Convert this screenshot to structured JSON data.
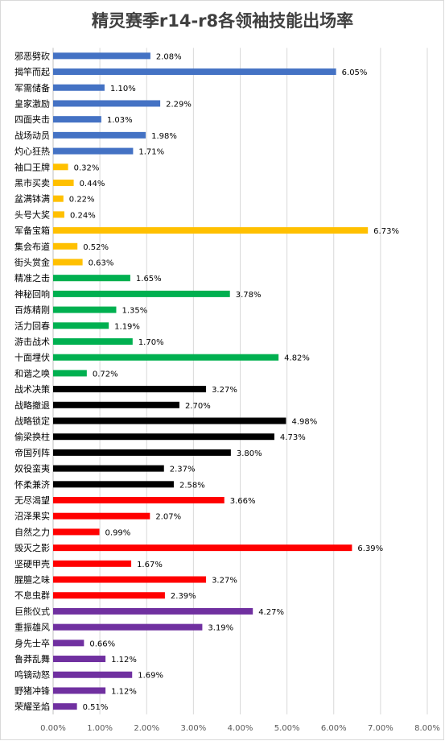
{
  "chart_data": {
    "type": "bar",
    "orientation": "horizontal",
    "title": "精灵赛季r14-r8各领袖技能出场率",
    "xlim": [
      0,
      8
    ],
    "x_tick_labels": [
      "0.00%",
      "1.00%",
      "2.00%",
      "3.00%",
      "4.00%",
      "5.00%",
      "6.00%",
      "7.00%",
      "8.00%"
    ],
    "grid": "vertical",
    "categories": [
      "邪恶劈砍",
      "揭竿而起",
      "军需储备",
      "皇家激励",
      "四面夹击",
      "战场动员",
      "灼心狂热",
      "袖口王牌",
      "黑市买卖",
      "盆满钵满",
      "头号大奖",
      "军备宝箱",
      "集会布道",
      "街头赏金",
      "精准之击",
      "神秘回响",
      "百炼精刚",
      "活力回春",
      "游击战术",
      "十面埋伏",
      "和谐之唤",
      "战术决策",
      "战略撤退",
      "战略锁定",
      "偷梁换柱",
      "帝国列阵",
      "奴役蛮夷",
      "怀柔兼济",
      "无尽渴望",
      "沼泽果实",
      "自然之力",
      "毁灭之影",
      "坚硬甲壳",
      "腥膻之味",
      "不息虫群",
      "巨熊仪式",
      "重振雄风",
      "身先士卒",
      "鲁莽乱舞",
      "鸣镝动怒",
      "野猪冲锋",
      "荣耀圣焰"
    ],
    "values": [
      2.08,
      6.05,
      1.1,
      2.29,
      1.03,
      1.98,
      1.71,
      0.32,
      0.44,
      0.22,
      0.24,
      6.73,
      0.52,
      0.63,
      1.65,
      3.78,
      1.35,
      1.19,
      1.7,
      4.82,
      0.72,
      3.27,
      2.7,
      4.98,
      4.73,
      3.8,
      2.37,
      2.58,
      3.66,
      2.07,
      0.99,
      6.39,
      1.67,
      3.27,
      2.39,
      4.27,
      3.19,
      0.66,
      1.12,
      1.69,
      1.12,
      0.51
    ],
    "value_labels": [
      "2.08%",
      "6.05%",
      "1.10%",
      "2.29%",
      "1.03%",
      "1.98%",
      "1.71%",
      "0.32%",
      "0.44%",
      "0.22%",
      "0.24%",
      "6.73%",
      "0.52%",
      "0.63%",
      "1.65%",
      "3.78%",
      "1.35%",
      "1.19%",
      "1.70%",
      "4.82%",
      "0.72%",
      "3.27%",
      "2.70%",
      "4.98%",
      "4.73%",
      "3.80%",
      "2.37%",
      "2.58%",
      "3.66%",
      "2.07%",
      "0.99%",
      "6.39%",
      "1.67%",
      "3.27%",
      "2.39%",
      "4.27%",
      "3.19%",
      "0.66%",
      "1.12%",
      "1.69%",
      "1.12%",
      "0.51%"
    ],
    "bar_colors": [
      "#4472c4",
      "#4472c4",
      "#4472c4",
      "#4472c4",
      "#4472c4",
      "#4472c4",
      "#4472c4",
      "#ffc000",
      "#ffc000",
      "#ffc000",
      "#ffc000",
      "#ffc000",
      "#ffc000",
      "#ffc000",
      "#00b050",
      "#00b050",
      "#00b050",
      "#00b050",
      "#00b050",
      "#00b050",
      "#00b050",
      "#000000",
      "#000000",
      "#000000",
      "#000000",
      "#000000",
      "#000000",
      "#000000",
      "#ff0000",
      "#ff0000",
      "#ff0000",
      "#ff0000",
      "#ff0000",
      "#ff0000",
      "#ff0000",
      "#7030a0",
      "#7030a0",
      "#7030a0",
      "#7030a0",
      "#7030a0",
      "#7030a0",
      "#7030a0"
    ]
  }
}
